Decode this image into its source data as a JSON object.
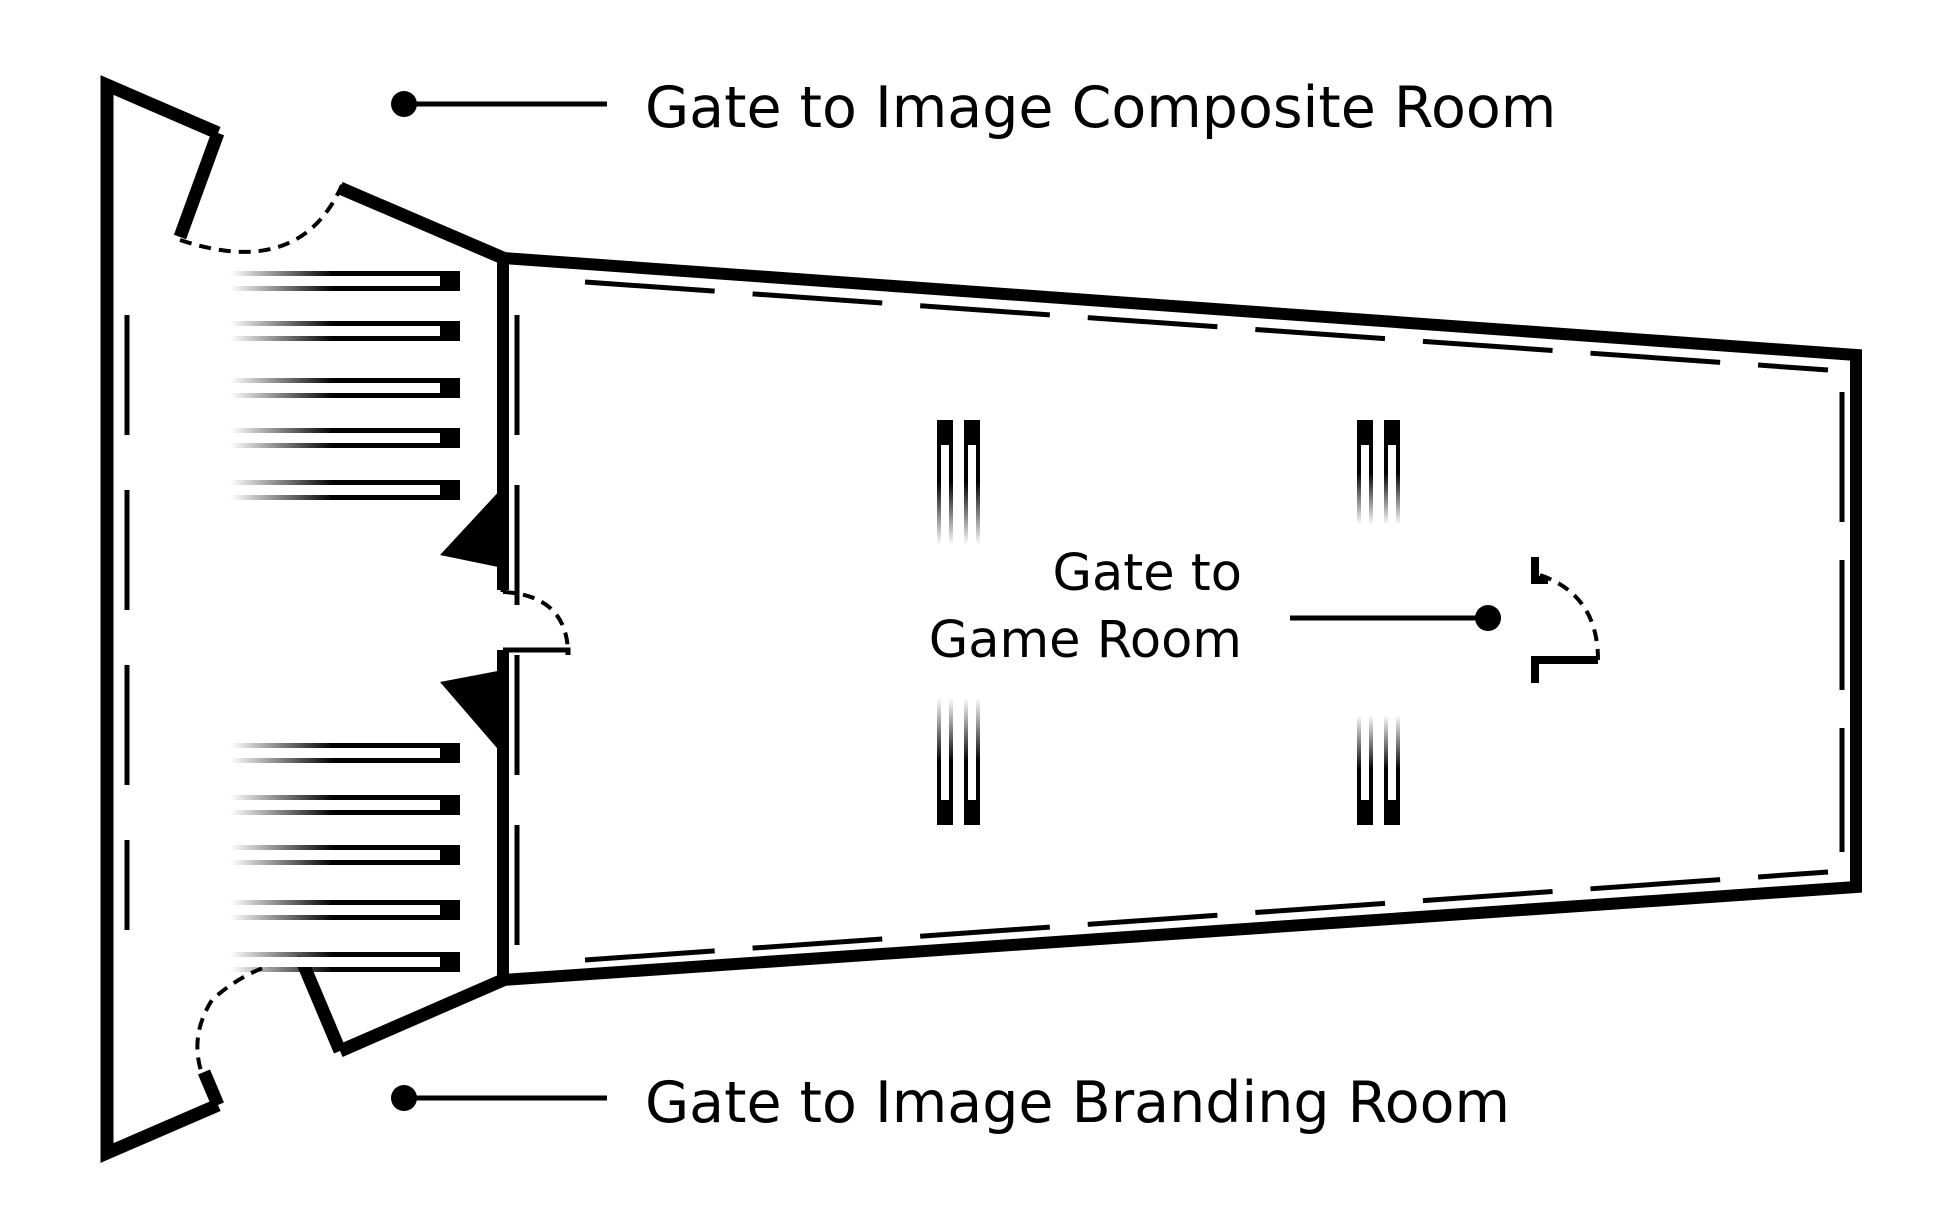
{
  "labels": {
    "top_gate": "Gate to Image Composite Room",
    "bottom_gate": "Gate to Image Branding Room",
    "center_gate_line1": "Gate to",
    "center_gate_line2": "Game Room"
  },
  "colors": {
    "ink": "#000000",
    "background": "#ffffff"
  }
}
